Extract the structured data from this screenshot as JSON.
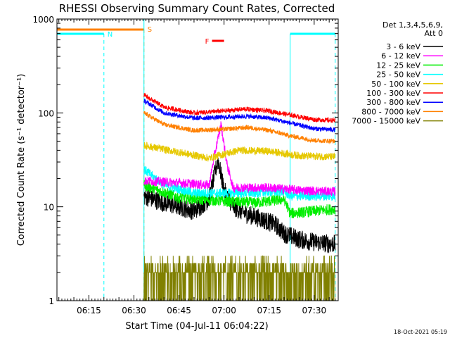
{
  "chart_data": {
    "type": "line",
    "title": "RHESSI Observing Summary Count Rates, Corrected",
    "xlabel": "Start Time (04-Jul-11 06:04:22)",
    "ylabel": "Corrected Count Rate (s⁻¹ detector⁻¹)",
    "yscale": "log",
    "ylim": [
      1,
      1000
    ],
    "xlim": [
      "06:04:22",
      "07:38:00"
    ],
    "x_ticks": [
      "06:15",
      "06:30",
      "06:45",
      "07:00",
      "07:15",
      "07:30"
    ],
    "y_ticks": [
      "1",
      "10",
      "100",
      "1000"
    ],
    "legend_header": [
      "Det 1,3,4,5,6,9,",
      "Att 0"
    ],
    "legend_position": "right",
    "footer_stamp": "18-Oct-2021 05:19",
    "data_start": "06:33:20",
    "series": [
      {
        "name": "3 - 6 keV",
        "color": "#000000",
        "times": [
          "06:33:20",
          "06:40",
          "06:45",
          "06:50",
          "06:55",
          "06:58",
          "07:00",
          "07:03",
          "07:07",
          "07:12",
          "07:17",
          "07:20",
          "07:25",
          "07:30",
          "07:37"
        ],
        "values": [
          13,
          11,
          10,
          9,
          12,
          32,
          15,
          10,
          8.5,
          7.5,
          6.5,
          5.2,
          4.5,
          4.2,
          4.0
        ]
      },
      {
        "name": "6 - 12 keV",
        "color": "#ff00ff",
        "times": [
          "06:33:20",
          "06:45",
          "06:55",
          "06:57",
          "06:59",
          "07:01",
          "07:03",
          "07:05",
          "07:15",
          "07:25",
          "07:37"
        ],
        "values": [
          19,
          18,
          17,
          38,
          75,
          28,
          16,
          16,
          16,
          15,
          14.5
        ]
      },
      {
        "name": "12 - 25 keV",
        "color": "#00ee00",
        "times": [
          "06:33:20",
          "06:45",
          "07:00",
          "07:10",
          "07:20",
          "07:22",
          "07:30",
          "07:37"
        ],
        "values": [
          17,
          12.5,
          11.5,
          11,
          12,
          8.5,
          9,
          9.5
        ]
      },
      {
        "name": "25 - 50 keV",
        "color": "#00ffff",
        "times": [
          "06:33:20",
          "06:40",
          "06:50",
          "07:00",
          "07:10",
          "07:20",
          "07:22",
          "07:30",
          "07:37"
        ],
        "values": [
          25,
          17,
          14,
          14,
          14,
          14.5,
          13,
          13,
          13
        ]
      },
      {
        "name": "50 - 100 keV",
        "color": "#e6c800",
        "times": [
          "06:33:20",
          "06:45",
          "06:55",
          "07:05",
          "07:15",
          "07:25",
          "07:37"
        ],
        "values": [
          45,
          38,
          33,
          40,
          39,
          35,
          34
        ]
      },
      {
        "name": "100 - 300 keV",
        "color": "#ff0000",
        "times": [
          "06:33:20",
          "06:40",
          "06:50",
          "07:00",
          "07:07",
          "07:15",
          "07:22",
          "07:30",
          "07:37"
        ],
        "values": [
          155,
          115,
          100,
          105,
          110,
          105,
          95,
          85,
          83
        ]
      },
      {
        "name": "300 - 800 keV",
        "color": "#0000ff",
        "times": [
          "06:33:20",
          "06:40",
          "06:50",
          "07:00",
          "07:08",
          "07:15",
          "07:22",
          "07:30",
          "07:37"
        ],
        "values": [
          135,
          100,
          88,
          90,
          92,
          88,
          78,
          68,
          66
        ]
      },
      {
        "name": "800 - 7000 keV",
        "color": "#ff8000",
        "times": [
          "06:33:20",
          "06:40",
          "06:50",
          "07:00",
          "07:08",
          "07:15",
          "07:22",
          "07:30",
          "07:37"
        ],
        "values": [
          100,
          75,
          65,
          67,
          70,
          65,
          57,
          51,
          50
        ]
      },
      {
        "name": "7000 - 15000 keV",
        "color": "#808000",
        "times": [
          "06:33:20",
          "06:40",
          "06:50",
          "07:00",
          "07:10",
          "07:20",
          "07:30",
          "07:37"
        ],
        "values": [
          3.5,
          2.5,
          2.0,
          2.0,
          2.3,
          2.5,
          2.0,
          2.0
        ]
      }
    ],
    "annotations": [
      {
        "label": "N",
        "kind": "night",
        "color": "#00ffff",
        "intervals": [
          [
            "06:04:22",
            "06:20"
          ],
          [
            "07:22",
            "07:37"
          ]
        ]
      },
      {
        "label": "S",
        "kind": "saa",
        "color": "#ff8000",
        "intervals": [
          [
            "06:04:22",
            "06:33:20"
          ]
        ]
      },
      {
        "label": "F",
        "kind": "flare",
        "color": "#ff0000",
        "intervals": [
          [
            "06:56",
            "07:00"
          ]
        ]
      }
    ]
  }
}
